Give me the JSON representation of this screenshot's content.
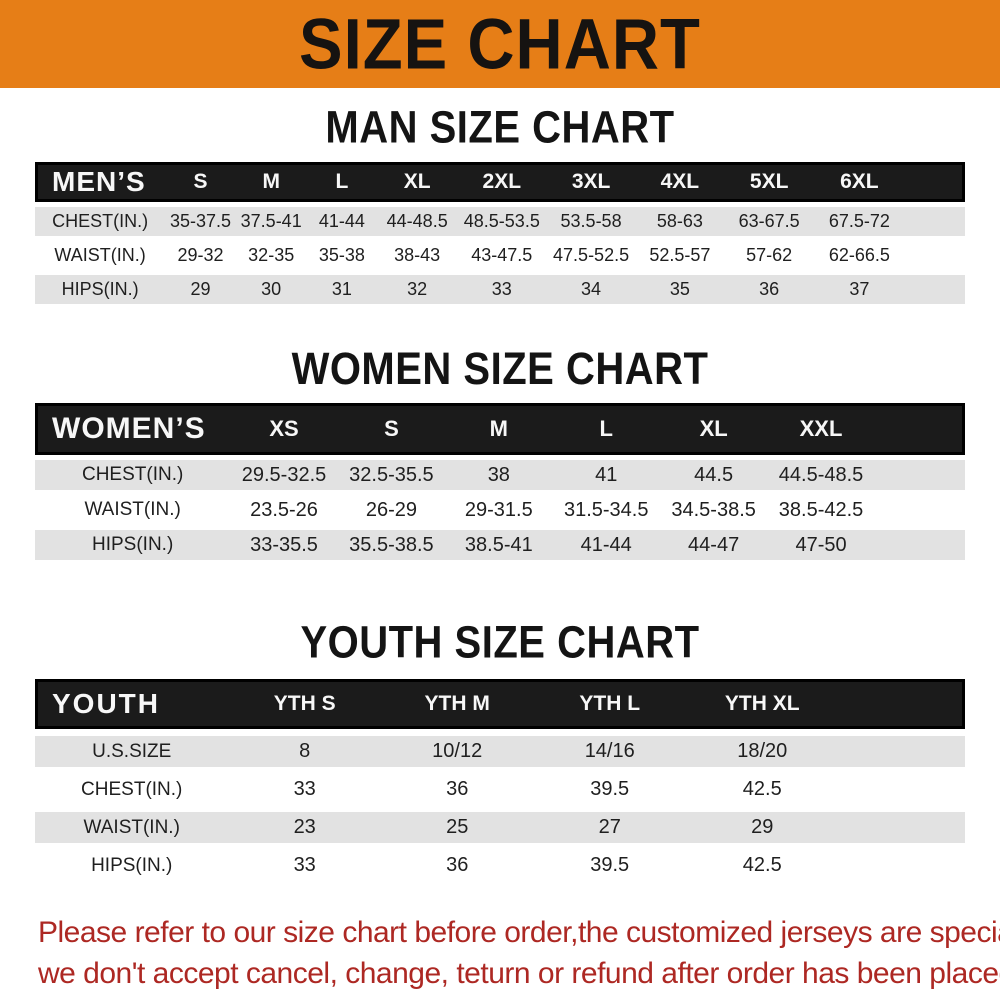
{
  "banner": {
    "title": "SIZE CHART"
  },
  "sections": [
    {
      "id": "men",
      "title": "MAN SIZE CHART",
      "header_label": "MEN’S",
      "columns": [
        "S",
        "M",
        "L",
        "XL",
        "2XL",
        "3XL",
        "4XL",
        "5XL",
        "6XL"
      ],
      "rows": [
        {
          "label": "CHEST(IN.)",
          "values": [
            "35-37.5",
            "37.5-41",
            "41-44",
            "44-48.5",
            "48.5-53.5",
            "53.5-58",
            "58-63",
            "63-67.5",
            "67.5-72"
          ]
        },
        {
          "label": "WAIST(IN.)",
          "values": [
            "29-32",
            "32-35",
            "35-38",
            "38-43",
            "43-47.5",
            "47.5-52.5",
            "52.5-57",
            "57-62",
            "62-66.5"
          ]
        },
        {
          "label": "HIPS(IN.)",
          "values": [
            "29",
            "30",
            "31",
            "32",
            "33",
            "34",
            "35",
            "36",
            "37"
          ]
        }
      ]
    },
    {
      "id": "women",
      "title": "WOMEN SIZE CHART",
      "header_label": "WOMEN’S",
      "columns": [
        "XS",
        "S",
        "M",
        "L",
        "XL",
        "XXL"
      ],
      "rows": [
        {
          "label": "CHEST(IN.)",
          "values": [
            "29.5-32.5",
            "32.5-35.5",
            "38",
            "41",
            "44.5",
            "44.5-48.5"
          ]
        },
        {
          "label": "WAIST(IN.)",
          "values": [
            "23.5-26",
            "26-29",
            "29-31.5",
            "31.5-34.5",
            "34.5-38.5",
            "38.5-42.5"
          ]
        },
        {
          "label": "HIPS(IN.)",
          "values": [
            "33-35.5",
            "35.5-38.5",
            "38.5-41",
            "41-44",
            "44-47",
            "47-50"
          ]
        }
      ]
    },
    {
      "id": "youth",
      "title": "YOUTH SIZE CHART",
      "header_label": "YOUTH",
      "columns": [
        "YTH S",
        "YTH M",
        "YTH L",
        "YTH XL"
      ],
      "rows": [
        {
          "label": "U.S.SIZE",
          "values": [
            "8",
            "10/12",
            "14/16",
            "18/20"
          ]
        },
        {
          "label": "CHEST(IN.)",
          "values": [
            "33",
            "36",
            "39.5",
            "42.5"
          ]
        },
        {
          "label": "WAIST(IN.)",
          "values": [
            "23",
            "25",
            "27",
            "29"
          ]
        },
        {
          "label": "HIPS(IN.)",
          "values": [
            "33",
            "36",
            "39.5",
            "42.5"
          ]
        }
      ]
    }
  ],
  "footer": {
    "line1": "Please refer to our size chart before order,the customized jerseys are special products,",
    "line2": "we don't accept cancel, change, teturn or refund after order has been placed!"
  },
  "colors": {
    "banner_bg": "#E67E17",
    "table_header_bg": "#1B1B1B",
    "row_stripe": "#E2E2E2",
    "footer_text": "#AD2823"
  }
}
